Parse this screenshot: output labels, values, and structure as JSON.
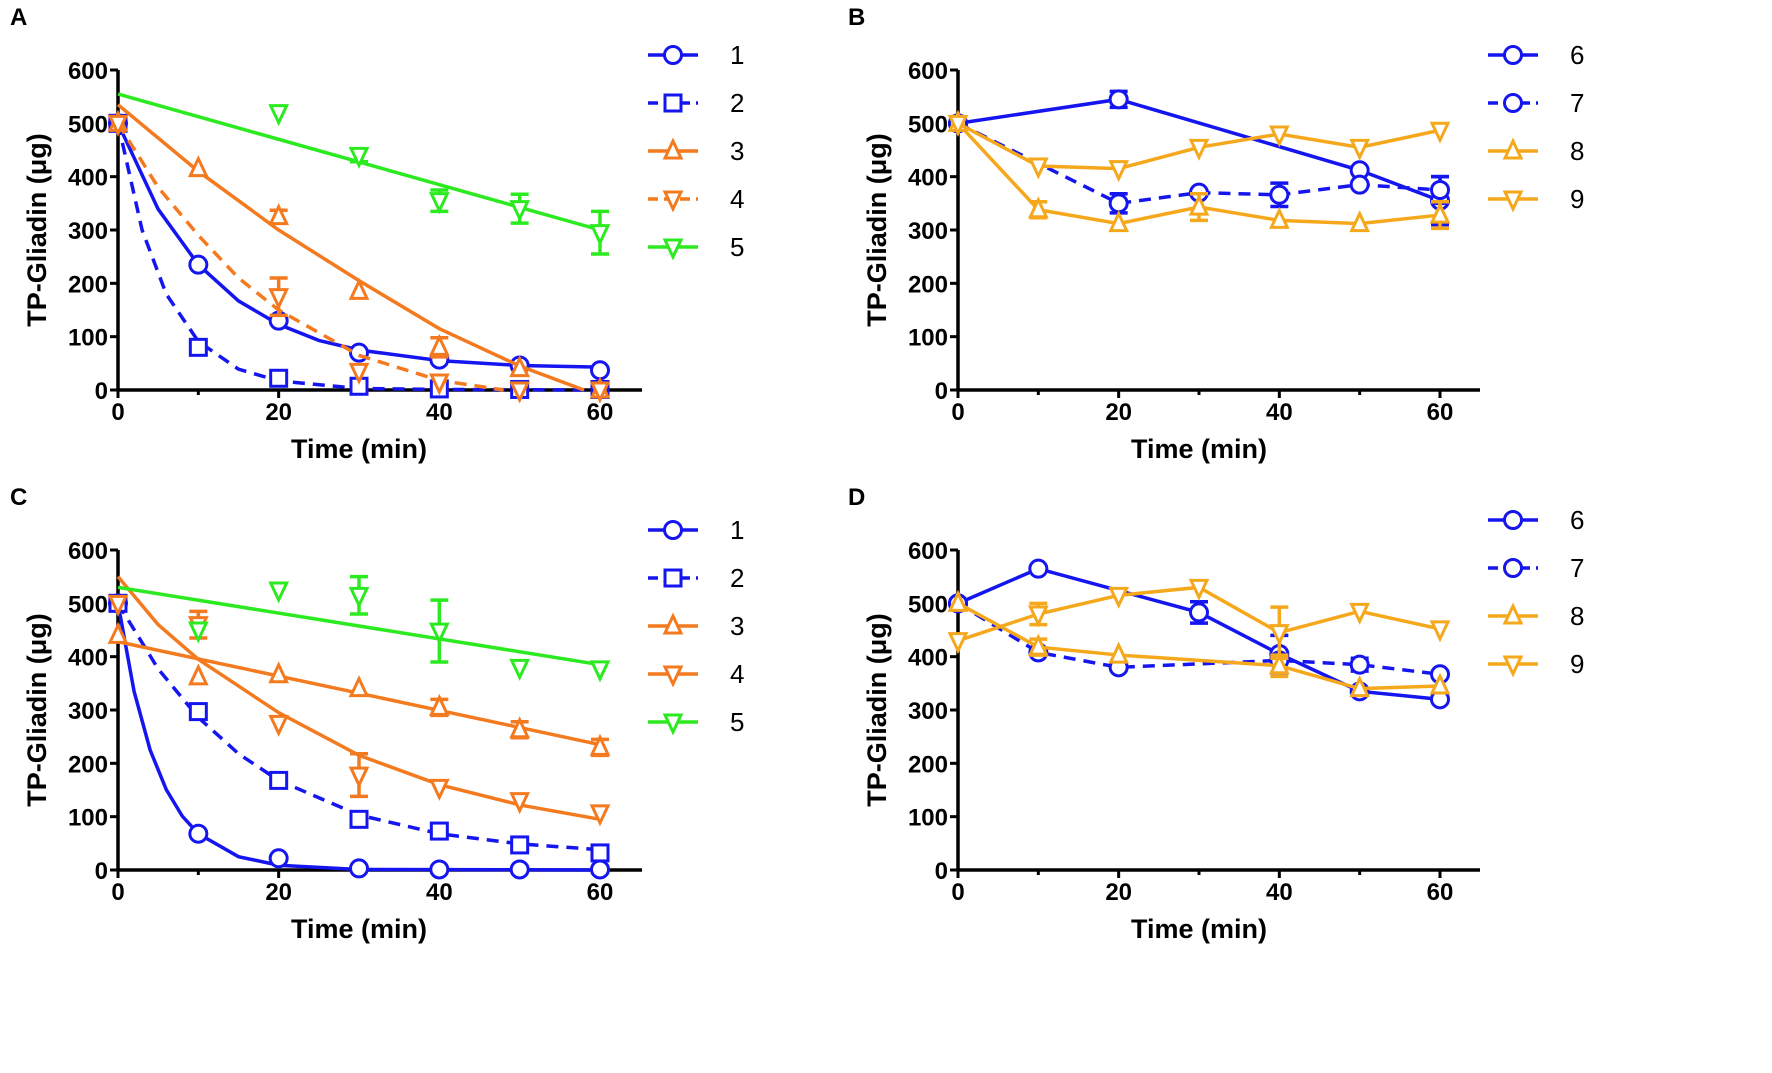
{
  "chart_data": [
    {
      "panel": "A",
      "type": "line",
      "xlabel": "Time (min)",
      "ylabel": "TP-Gliadin (μg)",
      "xlim": [
        0,
        60
      ],
      "ylim": [
        0,
        600
      ],
      "xticks": [
        0,
        20,
        40,
        60
      ],
      "yticks": [
        0,
        100,
        200,
        300,
        400,
        500,
        600
      ],
      "legend_position": "right",
      "series": [
        {
          "name": "1",
          "color": "#1515f0",
          "marker": "circle",
          "dashed": false,
          "points": [
            [
              0,
              500,
              0
            ],
            [
              10,
              235,
              0
            ],
            [
              20,
              130,
              0
            ],
            [
              30,
              70,
              0
            ],
            [
              40,
              57,
              0
            ],
            [
              50,
              46,
              0
            ],
            [
              60,
              37,
              0
            ]
          ],
          "fit": [
            [
              0,
              500
            ],
            [
              5,
              339
            ],
            [
              10,
              235
            ],
            [
              15,
              167
            ],
            [
              20,
              123
            ],
            [
              25,
              93
            ],
            [
              30,
              75
            ],
            [
              40,
              55
            ],
            [
              50,
              46
            ],
            [
              60,
              43
            ]
          ]
        },
        {
          "name": "2",
          "color": "#1515f0",
          "marker": "square",
          "dashed": true,
          "points": [
            [
              0,
              500,
              0
            ],
            [
              10,
              80,
              0
            ],
            [
              20,
              22,
              12
            ],
            [
              30,
              7,
              0
            ],
            [
              40,
              2,
              0
            ],
            [
              50,
              1,
              0
            ],
            [
              60,
              1,
              0
            ]
          ],
          "fit": [
            [
              0,
              500
            ],
            [
              3,
              300
            ],
            [
              6,
              180
            ],
            [
              10,
              91
            ],
            [
              15,
              39
            ],
            [
              20,
              17
            ],
            [
              30,
              3
            ],
            [
              40,
              1
            ],
            [
              60,
              0
            ]
          ]
        },
        {
          "name": "3",
          "color": "#f47a1f",
          "marker": "triangle-up",
          "dashed": false,
          "points": [
            [
              0,
              500,
              0
            ],
            [
              10,
              415,
              0
            ],
            [
              20,
              325,
              12
            ],
            [
              30,
              185,
              0
            ],
            [
              40,
              80,
              18
            ],
            [
              50,
              40,
              0
            ],
            [
              60,
              0,
              0
            ]
          ],
          "fit": [
            [
              0,
              535
            ],
            [
              10,
              410
            ],
            [
              20,
              300
            ],
            [
              30,
              205
            ],
            [
              40,
              115
            ],
            [
              50,
              45
            ],
            [
              58,
              0
            ]
          ]
        },
        {
          "name": "4",
          "color": "#f47a1f",
          "marker": "triangle-down",
          "dashed": true,
          "points": [
            [
              0,
              500,
              0
            ],
            [
              20,
              175,
              35
            ],
            [
              30,
              35,
              0
            ],
            [
              40,
              15,
              0
            ],
            [
              50,
              0,
              0
            ],
            [
              60,
              0,
              0
            ]
          ],
          "fit": [
            [
              0,
              500
            ],
            [
              5,
              380
            ],
            [
              10,
              290
            ],
            [
              15,
              210
            ],
            [
              20,
              150
            ],
            [
              30,
              65
            ],
            [
              40,
              18
            ],
            [
              48,
              0
            ]
          ]
        },
        {
          "name": "5",
          "color": "#2bea1f",
          "marker": "triangle-down",
          "dashed": false,
          "points": [
            [
              20,
              520,
              0
            ],
            [
              30,
              440,
              12
            ],
            [
              40,
              355,
              20
            ],
            [
              50,
              340,
              27
            ],
            [
              60,
              295,
              40
            ]
          ],
          "fit": [
            [
              0,
              555
            ],
            [
              60,
              300
            ]
          ]
        }
      ]
    },
    {
      "panel": "B",
      "type": "line",
      "xlabel": "Time (min)",
      "ylabel": "TP-Gliadin (μg)",
      "xlim": [
        0,
        60
      ],
      "ylim": [
        0,
        600
      ],
      "xticks": [
        0,
        20,
        40,
        60
      ],
      "yticks": [
        0,
        100,
        200,
        300,
        400,
        500,
        600
      ],
      "legend_position": "right",
      "series": [
        {
          "name": "6",
          "color": "#1515f0",
          "marker": "circle",
          "dashed": false,
          "points": [
            [
              0,
              500,
              0
            ],
            [
              20,
              545,
              15
            ],
            [
              50,
              412,
              0
            ],
            [
              60,
              355,
              45
            ]
          ]
        },
        {
          "name": "7",
          "color": "#1515f0",
          "marker": "circle",
          "dashed": true,
          "points": [
            [
              0,
              500,
              0
            ],
            [
              20,
              350,
              18
            ],
            [
              30,
              370,
              0
            ],
            [
              40,
              366,
              22
            ],
            [
              50,
              385,
              0
            ],
            [
              60,
              375,
              25
            ]
          ]
        },
        {
          "name": "8",
          "color": "#f5a81c",
          "marker": "triangle-up",
          "dashed": false,
          "points": [
            [
              0,
              500,
              0
            ],
            [
              10,
              338,
              15
            ],
            [
              20,
              312,
              0
            ],
            [
              30,
              343,
              25
            ],
            [
              40,
              318,
              0
            ],
            [
              50,
              312,
              0
            ],
            [
              60,
              328,
              25
            ]
          ]
        },
        {
          "name": "9",
          "color": "#f5a81c",
          "marker": "triangle-down",
          "dashed": false,
          "points": [
            [
              0,
              500,
              0
            ],
            [
              10,
              420,
              0
            ],
            [
              20,
              415,
              0
            ],
            [
              30,
              455,
              0
            ],
            [
              40,
              480,
              0
            ],
            [
              50,
              455,
              0
            ],
            [
              60,
              487,
              0
            ]
          ]
        }
      ]
    },
    {
      "panel": "C",
      "type": "line",
      "xlabel": "Time (min)",
      "ylabel": "TP-Gliadin (μg)",
      "xlim": [
        0,
        60
      ],
      "ylim": [
        0,
        600
      ],
      "xticks": [
        0,
        20,
        40,
        60
      ],
      "yticks": [
        0,
        100,
        200,
        300,
        400,
        500,
        600
      ],
      "legend_position": "right",
      "series": [
        {
          "name": "1",
          "color": "#1515f0",
          "marker": "circle",
          "dashed": false,
          "points": [
            [
              0,
              500,
              0
            ],
            [
              10,
              68,
              0
            ],
            [
              20,
              22,
              0
            ],
            [
              30,
              3,
              0
            ],
            [
              40,
              1,
              0
            ],
            [
              50,
              1,
              0
            ],
            [
              60,
              1,
              0
            ]
          ],
          "fit": [
            [
              0,
              500
            ],
            [
              2,
              335
            ],
            [
              4,
              225
            ],
            [
              6,
              151
            ],
            [
              8,
              101
            ],
            [
              10,
              68
            ],
            [
              15,
              25
            ],
            [
              20,
              9
            ],
            [
              30,
              1
            ],
            [
              60,
              0
            ]
          ]
        },
        {
          "name": "2",
          "color": "#1515f0",
          "marker": "square",
          "dashed": true,
          "points": [
            [
              0,
              500,
              0
            ],
            [
              10,
              297,
              10
            ],
            [
              20,
              168,
              0
            ],
            [
              30,
              95,
              0
            ],
            [
              40,
              73,
              0
            ],
            [
              50,
              47,
              0
            ],
            [
              60,
              32,
              0
            ]
          ],
          "fit": [
            [
              0,
              500
            ],
            [
              5,
              377
            ],
            [
              10,
              286
            ],
            [
              15,
              218
            ],
            [
              20,
              168
            ],
            [
              30,
              103
            ],
            [
              40,
              68
            ],
            [
              50,
              49
            ],
            [
              60,
              38
            ]
          ]
        },
        {
          "name": "3",
          "color": "#f47a1f",
          "marker": "triangle-up",
          "dashed": false,
          "points": [
            [
              0,
              440,
              0
            ],
            [
              10,
              362,
              0
            ],
            [
              20,
              366,
              0
            ],
            [
              30,
              340,
              0
            ],
            [
              40,
              305,
              15
            ],
            [
              50,
              263,
              15
            ],
            [
              60,
              230,
              15
            ]
          ],
          "fit": [
            [
              0,
              428
            ],
            [
              60,
              235
            ]
          ]
        },
        {
          "name": "4",
          "color": "#f47a1f",
          "marker": "triangle-down",
          "dashed": false,
          "points": [
            [
              0,
              500,
              0
            ],
            [
              10,
              460,
              25
            ],
            [
              20,
              275,
              0
            ],
            [
              30,
              178,
              40
            ],
            [
              40,
              155,
              0
            ],
            [
              50,
              130,
              0
            ],
            [
              60,
              107,
              0
            ]
          ],
          "fit": [
            [
              0,
              550
            ],
            [
              5,
              460
            ],
            [
              10,
              395
            ],
            [
              20,
              295
            ],
            [
              30,
              215
            ],
            [
              40,
              160
            ],
            [
              50,
              122
            ],
            [
              60,
              95
            ]
          ]
        },
        {
          "name": "5",
          "color": "#2bea1f",
          "marker": "triangle-down",
          "dashed": false,
          "points": [
            [
              10,
              450,
              0
            ],
            [
              20,
              525,
              0
            ],
            [
              30,
              515,
              35
            ],
            [
              40,
              448,
              58
            ],
            [
              50,
              380,
              0
            ],
            [
              60,
              377,
              0
            ]
          ],
          "fit": [
            [
              0,
              530
            ],
            [
              60,
              385
            ]
          ]
        }
      ]
    },
    {
      "panel": "D",
      "type": "line",
      "xlabel": "Time (min)",
      "ylabel": "TP-Gliadin (μg)",
      "xlim": [
        0,
        60
      ],
      "ylim": [
        0,
        600
      ],
      "xticks": [
        0,
        20,
        40,
        60
      ],
      "yticks": [
        0,
        100,
        200,
        300,
        400,
        500,
        600
      ],
      "legend_position": "right",
      "series": [
        {
          "name": "6",
          "color": "#1515f0",
          "marker": "circle",
          "dashed": false,
          "points": [
            [
              0,
              500,
              0
            ],
            [
              10,
              565,
              0
            ],
            [
              30,
              483,
              20
            ],
            [
              40,
              405,
              35
            ],
            [
              50,
              335,
              0
            ],
            [
              60,
              320,
              0
            ]
          ]
        },
        {
          "name": "7",
          "color": "#1515f0",
          "marker": "circle",
          "dashed": true,
          "points": [
            [
              0,
              500,
              0
            ],
            [
              10,
              408,
              0
            ],
            [
              20,
              380,
              0
            ],
            [
              40,
              393,
              0
            ],
            [
              50,
              385,
              12
            ],
            [
              60,
              367,
              0
            ]
          ]
        },
        {
          "name": "8",
          "color": "#f5a81c",
          "marker": "triangle-up",
          "dashed": false,
          "points": [
            [
              0,
              500,
              0
            ],
            [
              10,
              418,
              15
            ],
            [
              20,
              403,
              0
            ],
            [
              40,
              383,
              20
            ],
            [
              50,
              340,
              0
            ],
            [
              60,
              345,
              0
            ]
          ]
        },
        {
          "name": "9",
          "color": "#f5a81c",
          "marker": "triangle-down",
          "dashed": false,
          "points": [
            [
              0,
              430,
              0
            ],
            [
              10,
              480,
              20
            ],
            [
              20,
              515,
              0
            ],
            [
              30,
              530,
              0
            ],
            [
              40,
              445,
              48
            ],
            [
              50,
              485,
              0
            ],
            [
              60,
              452,
              0
            ]
          ]
        }
      ]
    }
  ]
}
